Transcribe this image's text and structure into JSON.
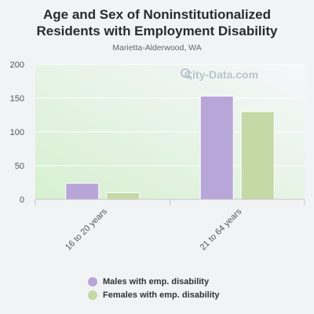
{
  "header": {
    "title": "Age and Sex of Noninstitutionalized Residents with Employment Disability",
    "subtitle": "Marietta-Alderwood, WA"
  },
  "watermark": "City-Data.com",
  "chart_data": {
    "type": "bar",
    "categories": [
      "16 to 20 years",
      "21 to 64 years"
    ],
    "series": [
      {
        "name": "Males with emp. disability",
        "values": [
          24,
          153
        ],
        "color": "#b9a6d9"
      },
      {
        "name": "Females with emp. disability",
        "values": [
          10,
          130
        ],
        "color": "#c4d9a6"
      }
    ],
    "ylim": [
      0,
      200
    ],
    "yticks": [
      0,
      50,
      100,
      150,
      200
    ],
    "grid": true,
    "legend": "bottom"
  }
}
